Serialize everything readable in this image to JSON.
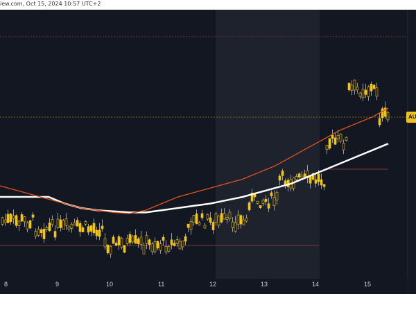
{
  "header": {
    "source_text": "iew.com, Oct 15, 2024 10:57 UTC+2"
  },
  "price_label": "AU",
  "colors": {
    "background": "#131722",
    "highlight": "#1e222d",
    "candle": "#f0c419",
    "ma_short": "#e2541a",
    "ma_long": "#ffffff"
  },
  "chart_data": {
    "type": "line",
    "x_ticks": [
      "8",
      "9",
      "10",
      "11",
      "12",
      "13",
      "14",
      "15"
    ],
    "series": [
      {
        "values": [
          0.3,
          0.28,
          0.26,
          0.24,
          0.22,
          0.2,
          0.19,
          0.18,
          0.175,
          0.19,
          0.22,
          0.25,
          0.27,
          0.29,
          0.31,
          0.33,
          0.36,
          0.39,
          0.43,
          0.47,
          0.51,
          0.55,
          0.58,
          0.61,
          0.65
        ]
      },
      {
        "values": [
          0.25,
          0.25,
          0.25,
          0.25,
          0.22,
          0.2,
          0.19,
          0.185,
          0.18,
          0.18,
          0.19,
          0.2,
          0.21,
          0.22,
          0.235,
          0.25,
          0.27,
          0.29,
          0.31,
          0.34,
          0.37,
          0.4,
          0.43,
          0.46,
          0.49
        ]
      }
    ]
  }
}
